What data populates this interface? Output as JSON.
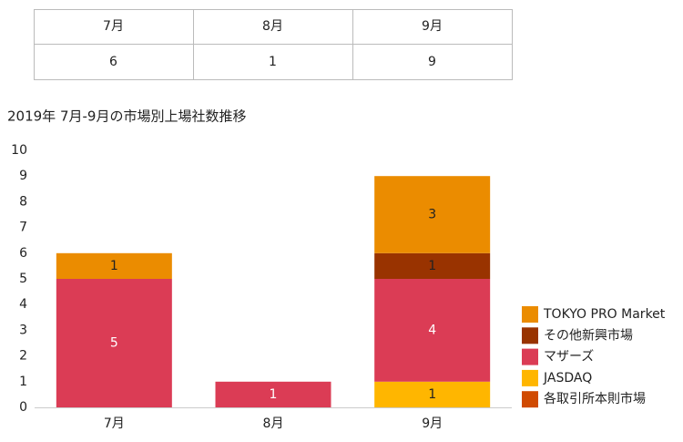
{
  "table": {
    "header": [
      "7月",
      "8月",
      "9月"
    ],
    "rows": [
      [
        6,
        1,
        9
      ]
    ]
  },
  "chart_data": {
    "type": "stacked-bar",
    "title": "2019年 7月-9月の市場別上場社数推移",
    "categories": [
      "7月",
      "8月",
      "9月"
    ],
    "series": [
      {
        "name": "各取引所本則市場",
        "color": "#d04a02",
        "values": [
          0,
          0,
          0
        ]
      },
      {
        "name": "JASDAQ",
        "color": "#ffb600",
        "values": [
          0,
          0,
          1
        ]
      },
      {
        "name": "マザーズ",
        "color": "#db3c55",
        "values": [
          5,
          1,
          4
        ]
      },
      {
        "name": "その他新興市場",
        "color": "#993300",
        "values": [
          0,
          0,
          1
        ]
      },
      {
        "name": "TOKYO PRO Market",
        "color": "#eb8c00",
        "values": [
          1,
          0,
          3
        ]
      }
    ],
    "ylim": [
      0,
      10
    ],
    "yticks": [
      0,
      1,
      2,
      3,
      4,
      5,
      6,
      7,
      8,
      9,
      10
    ],
    "legend": "right"
  }
}
